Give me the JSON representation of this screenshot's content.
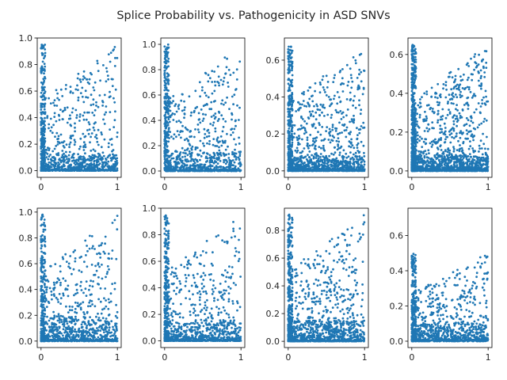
{
  "figure": {
    "title": "Splice Probability vs. Pathogenicity in ASD SNVs"
  },
  "chart_data": [
    {
      "type": "scatter",
      "title": "",
      "xlabel": "",
      "ylabel": "",
      "xlim": [
        -0.05,
        1.05
      ],
      "ylim": [
        -0.05,
        1.0
      ],
      "xticks": [
        0,
        1
      ],
      "yticks": [
        0.0,
        0.2,
        0.4,
        0.6,
        0.8,
        1.0
      ],
      "ytick_labels": [
        "0.0",
        "0.2",
        "0.4",
        "0.6",
        "0.8",
        "1.0"
      ],
      "point_count": 1100,
      "y_max": 0.95,
      "dense_low_band": 0.12,
      "color": "#1f77b4",
      "seed": 11
    },
    {
      "type": "scatter",
      "title": "",
      "xlabel": "",
      "ylabel": "",
      "xlim": [
        -0.05,
        1.05
      ],
      "ylim": [
        -0.05,
        1.05
      ],
      "xticks": [
        0,
        1
      ],
      "yticks": [
        0.0,
        0.2,
        0.4,
        0.6,
        0.8,
        1.0
      ],
      "ytick_labels": [
        "0.0",
        "0.2",
        "0.4",
        "0.6",
        "0.8",
        "1.0"
      ],
      "point_count": 1100,
      "y_max": 1.0,
      "dense_low_band": 0.15,
      "color": "#1f77b4",
      "seed": 23
    },
    {
      "type": "scatter",
      "title": "",
      "xlabel": "",
      "ylabel": "",
      "xlim": [
        -0.05,
        1.05
      ],
      "ylim": [
        -0.035,
        0.72
      ],
      "xticks": [
        0,
        1
      ],
      "yticks": [
        0.0,
        0.2,
        0.4,
        0.6
      ],
      "ytick_labels": [
        "0.0",
        "0.2",
        "0.4",
        "0.6"
      ],
      "point_count": 1400,
      "y_max": 0.68,
      "dense_low_band": 0.08,
      "color": "#1f77b4",
      "seed": 37
    },
    {
      "type": "scatter",
      "title": "",
      "xlabel": "",
      "ylabel": "",
      "xlim": [
        -0.05,
        1.05
      ],
      "ylim": [
        -0.033,
        0.685
      ],
      "xticks": [
        0,
        1
      ],
      "yticks": [
        0.0,
        0.2,
        0.4,
        0.6
      ],
      "ytick_labels": [
        "0.0",
        "0.2",
        "0.4",
        "0.6"
      ],
      "point_count": 1700,
      "y_max": 0.655,
      "dense_low_band": 0.08,
      "color": "#1f77b4",
      "seed": 41
    },
    {
      "type": "scatter",
      "title": "",
      "xlabel": "",
      "ylabel": "",
      "xlim": [
        -0.05,
        1.05
      ],
      "ylim": [
        -0.05,
        1.03
      ],
      "xticks": [
        0,
        1
      ],
      "yticks": [
        0.0,
        0.2,
        0.4,
        0.6,
        0.8,
        1.0
      ],
      "ytick_labels": [
        "0.0",
        "0.2",
        "0.4",
        "0.6",
        "0.8",
        "1.0"
      ],
      "point_count": 1100,
      "y_max": 0.98,
      "dense_low_band": 0.2,
      "color": "#1f77b4",
      "seed": 53
    },
    {
      "type": "scatter",
      "title": "",
      "xlabel": "",
      "ylabel": "",
      "xlim": [
        -0.05,
        1.05
      ],
      "ylim": [
        -0.05,
        1.0
      ],
      "xticks": [
        0,
        1
      ],
      "yticks": [
        0.0,
        0.2,
        0.4,
        0.6,
        0.8,
        1.0
      ],
      "ytick_labels": [
        "0.0",
        "0.2",
        "0.4",
        "0.6",
        "0.8",
        "1.0"
      ],
      "point_count": 1100,
      "y_max": 0.95,
      "dense_low_band": 0.15,
      "color": "#1f77b4",
      "seed": 67
    },
    {
      "type": "scatter",
      "title": "",
      "xlabel": "",
      "ylabel": "",
      "xlim": [
        -0.05,
        1.05
      ],
      "ylim": [
        -0.045,
        0.96
      ],
      "xticks": [
        0,
        1
      ],
      "yticks": [
        0.0,
        0.2,
        0.4,
        0.6,
        0.8
      ],
      "ytick_labels": [
        "0.0",
        "0.2",
        "0.4",
        "0.6",
        "0.8"
      ],
      "point_count": 1300,
      "y_max": 0.92,
      "dense_low_band": 0.15,
      "color": "#1f77b4",
      "seed": 79
    },
    {
      "type": "scatter",
      "title": "",
      "xlabel": "",
      "ylabel": "",
      "xlim": [
        -0.05,
        1.05
      ],
      "ylim": [
        -0.036,
        0.755
      ],
      "xticks": [
        0,
        1
      ],
      "yticks": [
        0.0,
        0.2,
        0.4,
        0.6
      ],
      "ytick_labels": [
        "0.0",
        "0.2",
        "0.4",
        "0.6"
      ],
      "point_count": 1100,
      "y_max": 0.5,
      "dense_low_band": 0.1,
      "color": "#1f77b4",
      "seed": 97
    }
  ]
}
